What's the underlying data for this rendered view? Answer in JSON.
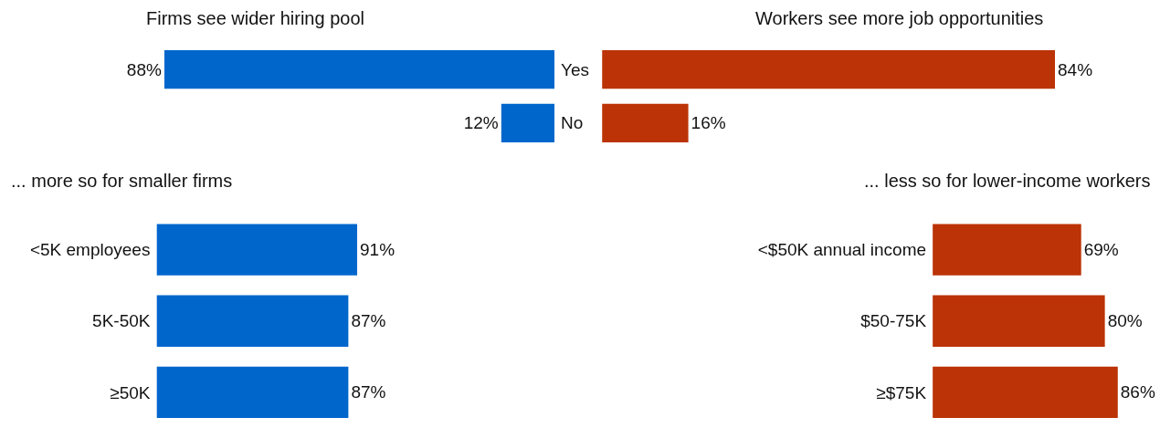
{
  "chart_data": [
    {
      "type": "bar",
      "orientation": "horizontal",
      "title": "Firms see wider hiring pool",
      "categories": [
        "Yes",
        "No"
      ],
      "values": [
        88,
        12
      ],
      "value_labels": [
        "88%",
        "12%"
      ],
      "color": "#0066cc",
      "tick_labels": "y"
    },
    {
      "type": "bar",
      "orientation": "horizontal",
      "title": "Workers see more job opportunities",
      "categories": [
        null,
        null
      ],
      "values": [
        84,
        16
      ],
      "value_labels": [
        "84%",
        "16%"
      ],
      "color": "#bb3306",
      "tick_labels": false
    },
    {
      "type": "bar",
      "orientation": "horizontal",
      "title": "... more so for smaller firms",
      "categories": [
        "<5K employees",
        "5K-50K",
        "≥50K"
      ],
      "values": [
        91,
        87,
        87
      ],
      "value_labels": [
        "91%",
        "87%",
        "87%"
      ],
      "color": "#0066cc",
      "tick_labels": "y"
    },
    {
      "type": "bar",
      "orientation": "horizontal",
      "title": "... less so for lower-income workers",
      "categories": [
        "<$50K annual income",
        "$50-75K",
        "≥$75K"
      ],
      "values": [
        69,
        80,
        86
      ],
      "value_labels": [
        "69%",
        "80%",
        "86%"
      ],
      "color": "#bb3306",
      "tick_labels": "y"
    }
  ]
}
